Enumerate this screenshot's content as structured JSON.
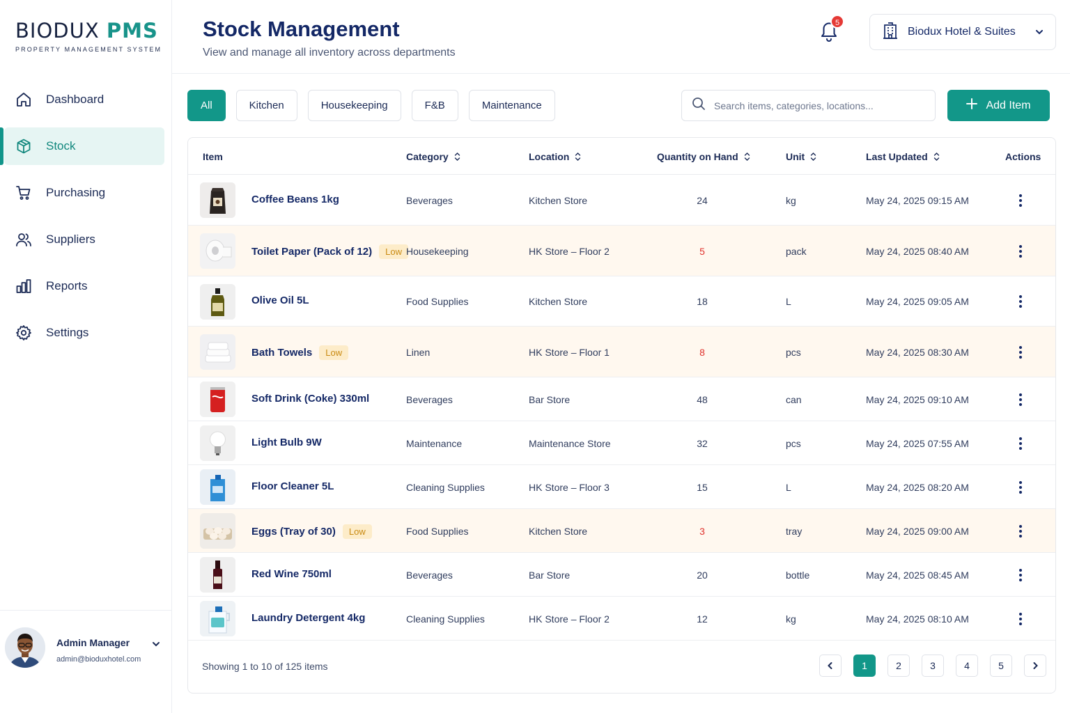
{
  "brand": {
    "name_part1": "BIODUX ",
    "name_part2": "PMS",
    "tagline": "PROPERTY MANAGEMENT SYSTEM"
  },
  "sidebar": {
    "items": [
      {
        "label": "Dashboard",
        "icon": "home-icon"
      },
      {
        "label": "Stock",
        "icon": "box-icon",
        "active": true
      },
      {
        "label": "Purchasing",
        "icon": "cart-icon"
      },
      {
        "label": "Suppliers",
        "icon": "users-icon"
      },
      {
        "label": "Reports",
        "icon": "bar-chart-icon"
      },
      {
        "label": "Settings",
        "icon": "gear-icon"
      }
    ]
  },
  "user": {
    "name": "Admin Manager",
    "email": "admin@bioduxhotel.com"
  },
  "header": {
    "title": "Stock Management",
    "subtitle": "View and manage all inventory across departments",
    "notifications": "5",
    "hotel": "Biodux Hotel & Suites"
  },
  "filters": [
    "All",
    "Kitchen",
    "Housekeeping",
    "F&B",
    "Maintenance"
  ],
  "search": {
    "placeholder": "Search items, categories, locations..."
  },
  "add_button": "Add Item",
  "table": {
    "columns": [
      "Item",
      "Category",
      "Location",
      "Quantity on Hand",
      "Unit",
      "Last Updated",
      "Actions"
    ],
    "low_label": "Low",
    "rows": [
      {
        "item": "Coffee Beans 1kg",
        "category": "Beverages",
        "location": "Kitchen Store",
        "qty": "24",
        "unit": "kg",
        "updated": "May 24, 2025 09:15 AM",
        "low": false,
        "thumb": "coffee"
      },
      {
        "item": "Toilet Paper (Pack of 12)",
        "category": "Housekeeping",
        "location": "HK Store – Floor 2",
        "qty": "5",
        "unit": "pack",
        "updated": "May 24, 2025 08:40 AM",
        "low": true,
        "thumb": "paper"
      },
      {
        "item": "Olive Oil 5L",
        "category": "Food Supplies",
        "location": "Kitchen Store",
        "qty": "18",
        "unit": "L",
        "updated": "May 24, 2025 09:05 AM",
        "low": false,
        "thumb": "oil"
      },
      {
        "item": "Bath Towels",
        "category": "Linen",
        "location": "HK Store – Floor 1",
        "qty": "8",
        "unit": "pcs",
        "updated": "May 24, 2025 08:30 AM",
        "low": true,
        "thumb": "towel"
      },
      {
        "item": "Soft Drink (Coke) 330ml",
        "category": "Beverages",
        "location": "Bar Store",
        "qty": "48",
        "unit": "can",
        "updated": "May 24, 2025 09:10 AM",
        "low": false,
        "thumb": "coke"
      },
      {
        "item": "Light Bulb 9W",
        "category": "Maintenance",
        "location": "Maintenance Store",
        "qty": "32",
        "unit": "pcs",
        "updated": "May 24, 2025 07:55 AM",
        "low": false,
        "thumb": "bulb"
      },
      {
        "item": "Floor Cleaner 5L",
        "category": "Cleaning Supplies",
        "location": "HK Store – Floor 3",
        "qty": "15",
        "unit": "L",
        "updated": "May 24, 2025 08:20 AM",
        "low": false,
        "thumb": "cleaner"
      },
      {
        "item": "Eggs (Tray of 30)",
        "category": "Food Supplies",
        "location": "Kitchen Store",
        "qty": "3",
        "unit": "tray",
        "updated": "May 24, 2025 09:00 AM",
        "low": true,
        "thumb": "eggs"
      },
      {
        "item": "Red Wine 750ml",
        "category": "Beverages",
        "location": "Bar Store",
        "qty": "20",
        "unit": "bottle",
        "updated": "May 24, 2025 08:45 AM",
        "low": false,
        "thumb": "wine"
      },
      {
        "item": "Laundry Detergent 4kg",
        "category": "Cleaning Supplies",
        "location": "HK Store – Floor 2",
        "qty": "12",
        "unit": "kg",
        "updated": "May 24, 2025 08:10 AM",
        "low": false,
        "thumb": "detergent"
      }
    ]
  },
  "pagination": {
    "summary": "Showing 1 to 10 of 125 items",
    "pages": [
      "1",
      "2",
      "3",
      "4",
      "5"
    ],
    "current": "1"
  },
  "colors": {
    "accent": "#129789",
    "navy": "#142866",
    "low_bg": "#fff8ef",
    "low_badge": "#fdecc9",
    "low_qty": "#e0322d"
  }
}
